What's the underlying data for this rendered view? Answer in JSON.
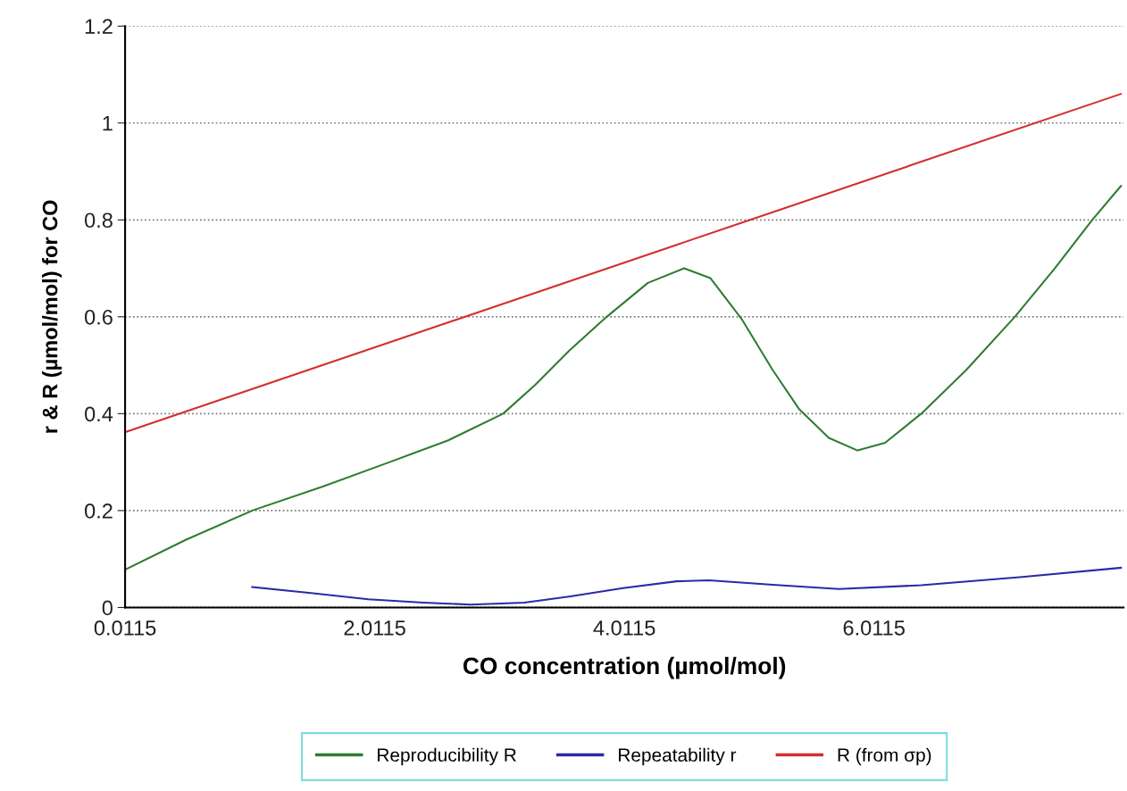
{
  "chart_data": {
    "type": "line",
    "xlabel": "CO concentration (µmol/mol)",
    "ylabel": "r & R (µmol/mol) for CO",
    "xlim": [
      0.0115,
      8.0115
    ],
    "xticks": [
      0.0115,
      2.0115,
      4.0115,
      6.0115
    ],
    "ylim": [
      0,
      1.2
    ],
    "yticks": [
      0,
      0.2,
      0.4,
      0.6,
      0.8,
      1,
      1.2
    ],
    "grid": "y",
    "legend": "bottom",
    "marker": "none",
    "line_style": "solid",
    "series": [
      {
        "name": "Reproducibility R",
        "color": "#2e7d32",
        "x": [
          0.0115,
          0.5,
          1.04,
          1.6,
          2.13,
          2.6,
          3.04,
          3.3,
          3.57,
          3.87,
          4.2,
          4.49,
          4.7,
          4.95,
          5.2,
          5.41,
          5.65,
          5.88,
          6.1,
          6.39,
          6.75,
          7.14,
          7.46,
          7.76,
          7.99
        ],
        "values": [
          0.078,
          0.14,
          0.201,
          0.25,
          0.3,
          0.345,
          0.4,
          0.46,
          0.53,
          0.6,
          0.67,
          0.7,
          0.68,
          0.596,
          0.49,
          0.41,
          0.35,
          0.324,
          0.34,
          0.4,
          0.49,
          0.6,
          0.7,
          0.8,
          0.87
        ]
      },
      {
        "name": "Repeatability r",
        "color": "#2a2aa8",
        "x": [
          1.03,
          1.5,
          1.96,
          2.4,
          2.78,
          3.21,
          3.58,
          4.0,
          4.43,
          4.69,
          5.2,
          5.73,
          6.39,
          7.2,
          7.99
        ],
        "values": [
          0.042,
          0.03,
          0.017,
          0.01,
          0.006,
          0.01,
          0.023,
          0.04,
          0.054,
          0.056,
          0.047,
          0.038,
          0.046,
          0.063,
          0.082
        ]
      },
      {
        "name": "R (from σp)",
        "color": "#d32f2f",
        "x": [
          0.0115,
          7.99
        ],
        "values": [
          0.362,
          1.06
        ]
      }
    ]
  }
}
